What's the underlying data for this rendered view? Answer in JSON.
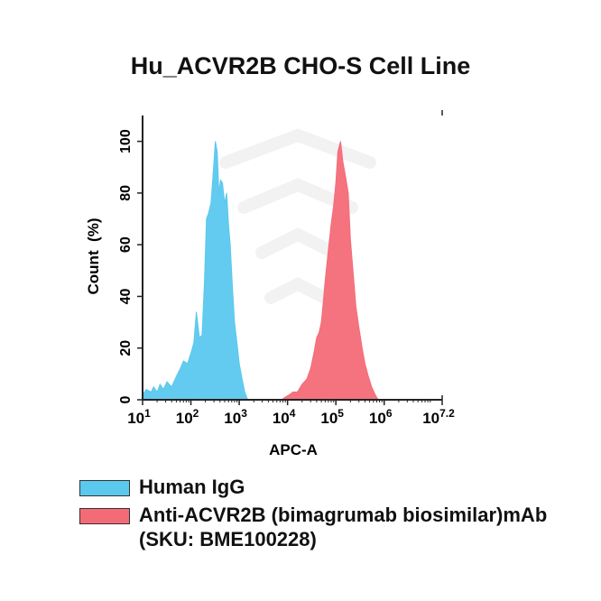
{
  "chart_data": {
    "type": "area",
    "title": "Hu_ACVR2B CHO-S Cell Line",
    "xlabel": "APC-A",
    "ylabel": "Count  (%)",
    "x_scale": "log",
    "xlim": [
      10,
      15848932
    ],
    "ylim": [
      0,
      110
    ],
    "x_ticks": [
      {
        "value": 10,
        "base": "10",
        "exp": "1"
      },
      {
        "value": 100,
        "base": "10",
        "exp": "2"
      },
      {
        "value": 1000,
        "base": "10",
        "exp": "3"
      },
      {
        "value": 10000,
        "base": "10",
        "exp": "4"
      },
      {
        "value": 100000,
        "base": "10",
        "exp": "5"
      },
      {
        "value": 1000000,
        "base": "10",
        "exp": "6"
      },
      {
        "value": 15848932,
        "base": "10",
        "exp": "7.2"
      }
    ],
    "y_ticks": [
      0,
      20,
      40,
      60,
      80,
      100
    ],
    "legend_placement": "bottom",
    "series": [
      {
        "name": "Human IgG",
        "color": "#5bc8ee",
        "x": [
          10,
          12,
          15,
          17,
          20,
          23,
          27,
          32,
          40,
          50,
          60,
          70,
          85,
          100,
          115,
          130,
          150,
          170,
          190,
          210,
          230,
          260,
          290,
          320,
          350,
          380,
          410,
          450,
          500,
          550,
          600,
          650,
          720,
          800,
          900,
          1000,
          1150,
          1300,
          1500
        ],
        "y": [
          2,
          4,
          3,
          5,
          3,
          6,
          4,
          7,
          5,
          9,
          12,
          15,
          14,
          18,
          22,
          34,
          24,
          25,
          45,
          70,
          72,
          76,
          88,
          100,
          96,
          80,
          85,
          84,
          76,
          80,
          68,
          60,
          44,
          30,
          22,
          14,
          8,
          3,
          0
        ]
      },
      {
        "name": "Anti-ACVR2B (bimagrumab biosimilar)mAb (SKU: BME100228)",
        "color": "#f46b78",
        "x": [
          7500,
          9000,
          11000,
          13000,
          16000,
          20000,
          25000,
          30000,
          35000,
          40000,
          45000,
          50000,
          55000,
          60000,
          70000,
          80000,
          90000,
          100000,
          110000,
          125000,
          140000,
          160000,
          180000,
          200000,
          230000,
          260000,
          300000,
          350000,
          400000,
          470000,
          550000,
          650000,
          750000
        ],
        "y": [
          0,
          1,
          2,
          3,
          3,
          6,
          8,
          12,
          18,
          24,
          26,
          30,
          38,
          46,
          58,
          68,
          75,
          84,
          96,
          100,
          92,
          86,
          80,
          62,
          48,
          36,
          28,
          20,
          14,
          9,
          5,
          2,
          0
        ]
      }
    ]
  }
}
